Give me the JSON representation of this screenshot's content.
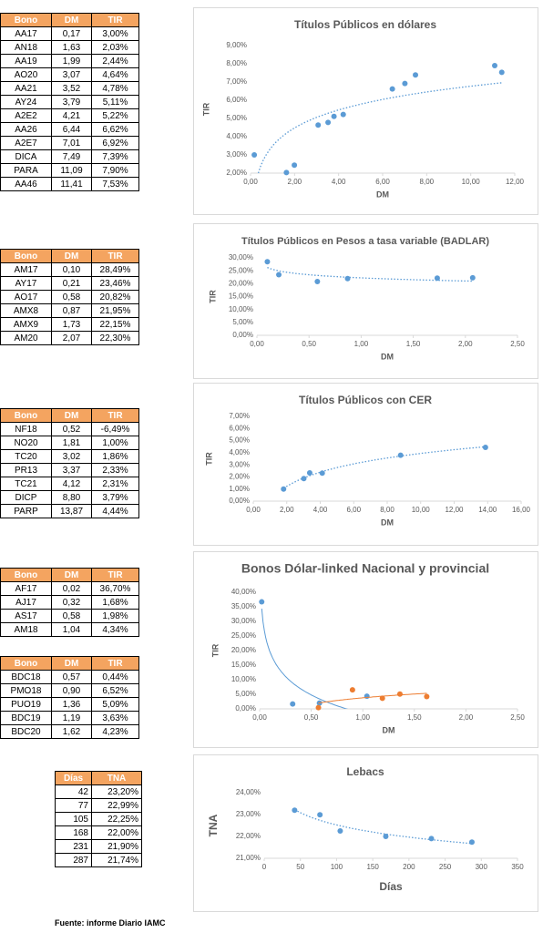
{
  "tables": [
    {
      "header": [
        "Bono",
        "DM",
        "TIR"
      ],
      "rows": [
        [
          "AA17",
          "0,17",
          "3,00%"
        ],
        [
          "AN18",
          "1,63",
          "2,03%"
        ],
        [
          "AA19",
          "1,99",
          "2,44%"
        ],
        [
          "AO20",
          "3,07",
          "4,64%"
        ],
        [
          "AA21",
          "3,52",
          "4,78%"
        ],
        [
          "AY24",
          "3,79",
          "5,11%"
        ],
        [
          "A2E2",
          "4,21",
          "5,22%"
        ],
        [
          "AA26",
          "6,44",
          "6,62%"
        ],
        [
          "A2E7",
          "7,01",
          "6,92%"
        ],
        [
          "DICA",
          "7,49",
          "7,39%"
        ],
        [
          "PARA",
          "11,09",
          "7,90%"
        ],
        [
          "AA46",
          "11,41",
          "7,53%"
        ]
      ]
    },
    {
      "header": [
        "Bono",
        "DM",
        "TIR"
      ],
      "rows": [
        [
          "AM17",
          "0,10",
          "28,49%"
        ],
        [
          "AY17",
          "0,21",
          "23,46%"
        ],
        [
          "AO17",
          "0,58",
          "20,82%"
        ],
        [
          "AMX8",
          "0,87",
          "21,95%"
        ],
        [
          "AMX9",
          "1,73",
          "22,15%"
        ],
        [
          "AM20",
          "2,07",
          "22,30%"
        ]
      ]
    },
    {
      "header": [
        "Bono",
        "DM",
        "TIR"
      ],
      "rows": [
        [
          "NF18",
          "0,52",
          "-6,49%"
        ],
        [
          "NO20",
          "1,81",
          "1,00%"
        ],
        [
          "TC20",
          "3,02",
          "1,86%"
        ],
        [
          "PR13",
          "3,37",
          "2,33%"
        ],
        [
          "TC21",
          "4,12",
          "2,31%"
        ],
        [
          "DICP",
          "8,80",
          "3,79%"
        ],
        [
          "PARP",
          "13,87",
          "4,44%"
        ]
      ]
    },
    {
      "header": [
        "Bono",
        "DM",
        "TIR"
      ],
      "rows": [
        [
          "AF17",
          "0,02",
          "36,70%"
        ],
        [
          "AJ17",
          "0,32",
          "1,68%"
        ],
        [
          "AS17",
          "0,58",
          "1,98%"
        ],
        [
          "AM18",
          "1,04",
          "4,34%"
        ]
      ]
    },
    {
      "header": [
        "Bono",
        "DM",
        "TIR"
      ],
      "rows": [
        [
          "BDC18",
          "0,57",
          "0,44%"
        ],
        [
          "PMO18",
          "0,90",
          "6,52%"
        ],
        [
          "PUO19",
          "1,36",
          "5,09%"
        ],
        [
          "BDC19",
          "1,19",
          "3,63%"
        ],
        [
          "BDC20",
          "1,62",
          "4,23%"
        ]
      ]
    },
    {
      "header": [
        "Días",
        "TNA"
      ],
      "rows": [
        [
          "42",
          "23,20%"
        ],
        [
          "77",
          "22,99%"
        ],
        [
          "105",
          "22,25%"
        ],
        [
          "168",
          "22,00%"
        ],
        [
          "231",
          "21,90%"
        ],
        [
          "287",
          "21,74%"
        ]
      ]
    }
  ],
  "chart_data": [
    {
      "type": "scatter",
      "title": "Títulos Públicos en dólares",
      "x_label": "DM",
      "y_label": "TIR",
      "trendline": "log",
      "trendline_style": "dotted",
      "xlim": [
        0,
        12
      ],
      "ylim": [
        2,
        9
      ],
      "xticks": [
        {
          "value": 0,
          "label": "0,00"
        },
        {
          "value": 2,
          "label": "2,00"
        },
        {
          "value": 4,
          "label": "4,00"
        },
        {
          "value": 6,
          "label": "6,00"
        },
        {
          "value": 8,
          "label": "8,00"
        },
        {
          "value": 10,
          "label": "10,00"
        },
        {
          "value": 12,
          "label": "12,00"
        }
      ],
      "yticks": [
        {
          "value": 2,
          "label": "2,00%"
        },
        {
          "value": 3,
          "label": "3,00%"
        },
        {
          "value": 4,
          "label": "4,00%"
        },
        {
          "value": 5,
          "label": "5,00%"
        },
        {
          "value": 6,
          "label": "6,00%"
        },
        {
          "value": 7,
          "label": "7,00%"
        },
        {
          "value": 8,
          "label": "8,00%"
        },
        {
          "value": 9,
          "label": "9,00%"
        }
      ],
      "series": [
        {
          "color": "#5b9bd5",
          "x": [
            0.17,
            1.63,
            1.99,
            3.07,
            3.52,
            3.79,
            4.21,
            6.44,
            7.01,
            7.49,
            11.09,
            11.41
          ],
          "values": [
            3.0,
            2.03,
            2.44,
            4.64,
            4.78,
            5.11,
            5.22,
            6.62,
            6.92,
            7.39,
            7.9,
            7.53
          ]
        }
      ]
    },
    {
      "type": "scatter",
      "title": "Títulos Públicos en Pesos a tasa variable (BADLAR)",
      "x_label": "DM",
      "y_label": "TIR",
      "trendline": "log",
      "trendline_style": "dotted",
      "xlim": [
        0,
        2.5
      ],
      "ylim": [
        0,
        30
      ],
      "xticks": [
        {
          "value": 0,
          "label": "0,00"
        },
        {
          "value": 0.5,
          "label": "0,50"
        },
        {
          "value": 1,
          "label": "1,00"
        },
        {
          "value": 1.5,
          "label": "1,50"
        },
        {
          "value": 2,
          "label": "2,00"
        },
        {
          "value": 2.5,
          "label": "2,50"
        }
      ],
      "yticks": [
        {
          "value": 0,
          "label": "0,00%"
        },
        {
          "value": 5,
          "label": "5,00%"
        },
        {
          "value": 10,
          "label": "10,00%"
        },
        {
          "value": 15,
          "label": "15,00%"
        },
        {
          "value": 20,
          "label": "20,00%"
        },
        {
          "value": 25,
          "label": "25,00%"
        },
        {
          "value": 30,
          "label": "30,00%"
        }
      ],
      "series": [
        {
          "color": "#5b9bd5",
          "x": [
            0.1,
            0.21,
            0.58,
            0.87,
            1.73,
            2.07
          ],
          "values": [
            28.49,
            23.46,
            20.82,
            21.95,
            22.15,
            22.3
          ]
        }
      ]
    },
    {
      "type": "scatter",
      "title": "Títulos Públicos con CER",
      "x_label": "DM",
      "y_label": "TIR",
      "trendline": "log",
      "trendline_style": "dotted",
      "xlim": [
        0,
        16
      ],
      "ylim": [
        0,
        7
      ],
      "xticks": [
        {
          "value": 0,
          "label": "0,00"
        },
        {
          "value": 2,
          "label": "2,00"
        },
        {
          "value": 4,
          "label": "4,00"
        },
        {
          "value": 6,
          "label": "6,00"
        },
        {
          "value": 8,
          "label": "8,00"
        },
        {
          "value": 10,
          "label": "10,00"
        },
        {
          "value": 12,
          "label": "12,00"
        },
        {
          "value": 14,
          "label": "14,00"
        },
        {
          "value": 16,
          "label": "16,00"
        }
      ],
      "yticks": [
        {
          "value": 0,
          "label": "0,00%"
        },
        {
          "value": 1,
          "label": "1,00%"
        },
        {
          "value": 2,
          "label": "2,00%"
        },
        {
          "value": 3,
          "label": "3,00%"
        },
        {
          "value": 4,
          "label": "4,00%"
        },
        {
          "value": 5,
          "label": "5,00%"
        },
        {
          "value": 6,
          "label": "6,00%"
        },
        {
          "value": 7,
          "label": "7,00%"
        }
      ],
      "series": [
        {
          "color": "#5b9bd5",
          "x": [
            1.81,
            3.02,
            3.37,
            4.12,
            8.8,
            13.87
          ],
          "values": [
            1.0,
            1.86,
            2.33,
            2.31,
            3.79,
            4.44
          ]
        }
      ]
    },
    {
      "type": "scatter",
      "title": "Bonos Dólar-linked  Nacional y provincial",
      "x_label": "DM",
      "y_label": "TIR",
      "trendline": "log",
      "trendline_style": "solid",
      "xlim": [
        0,
        2.5
      ],
      "ylim": [
        0,
        40
      ],
      "xticks": [
        {
          "value": 0,
          "label": "0,00"
        },
        {
          "value": 0.5,
          "label": "0,50"
        },
        {
          "value": 1,
          "label": "1,00"
        },
        {
          "value": 1.5,
          "label": "1,50"
        },
        {
          "value": 2,
          "label": "2,00"
        },
        {
          "value": 2.5,
          "label": "2,50"
        }
      ],
      "yticks": [
        {
          "value": 0,
          "label": "0,00%"
        },
        {
          "value": 5,
          "label": "5,00%"
        },
        {
          "value": 10,
          "label": "10,00%"
        },
        {
          "value": 15,
          "label": "15,00%"
        },
        {
          "value": 20,
          "label": "20,00%"
        },
        {
          "value": 25,
          "label": "25,00%"
        },
        {
          "value": 30,
          "label": "30,00%"
        },
        {
          "value": 35,
          "label": "35,00%"
        },
        {
          "value": 40,
          "label": "40,00%"
        }
      ],
      "series": [
        {
          "color": "#5b9bd5",
          "x": [
            0.02,
            0.32,
            0.58,
            1.04
          ],
          "values": [
            36.7,
            1.68,
            1.98,
            4.34
          ]
        },
        {
          "color": "#ed7d31",
          "x": [
            0.57,
            0.9,
            1.36,
            1.19,
            1.62
          ],
          "values": [
            0.44,
            6.52,
            5.09,
            3.63,
            4.23
          ]
        }
      ]
    },
    {
      "type": "scatter",
      "title": "Lebacs",
      "x_label": "Días",
      "y_label": "TNA",
      "trendline": "log",
      "trendline_style": "dotted",
      "xlim": [
        0,
        350
      ],
      "ylim": [
        21,
        24
      ],
      "xticks": [
        0,
        50,
        100,
        150,
        200,
        250,
        300,
        350
      ],
      "yticks": [
        {
          "value": 21,
          "label": "21,00%"
        },
        {
          "value": 22,
          "label": "22,00%"
        },
        {
          "value": 23,
          "label": "23,00%"
        },
        {
          "value": 24,
          "label": "24,00%"
        }
      ],
      "series": [
        {
          "color": "#5b9bd5",
          "x": [
            42,
            77,
            105,
            168,
            231,
            287
          ],
          "values": [
            23.2,
            22.99,
            22.25,
            22.0,
            21.9,
            21.74
          ]
        }
      ]
    }
  ],
  "footer": "Fuente: informe Diario IAMC"
}
